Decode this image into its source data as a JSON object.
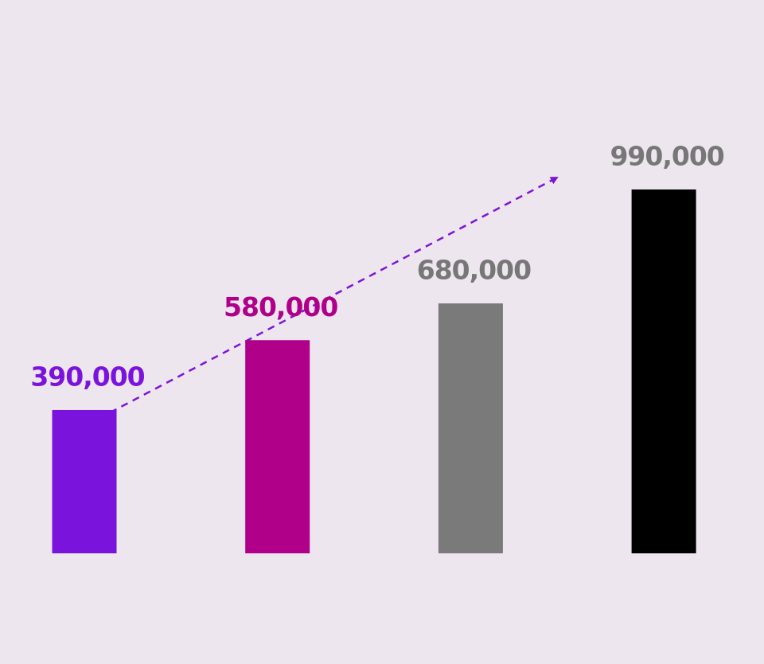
{
  "chart_data": {
    "type": "bar",
    "categories": [
      null,
      null,
      null,
      null
    ],
    "values": [
      390000,
      580000,
      680000,
      990000
    ],
    "value_labels": [
      "390,000",
      "580,000",
      "680,000",
      "990,000"
    ],
    "colors": [
      "#7a14dc",
      "#b0008a",
      "#7a7a7a",
      "#000000"
    ],
    "label_colors": [
      "#7a14dc",
      "#b0008a",
      "#777777",
      "#777777"
    ]
  }
}
